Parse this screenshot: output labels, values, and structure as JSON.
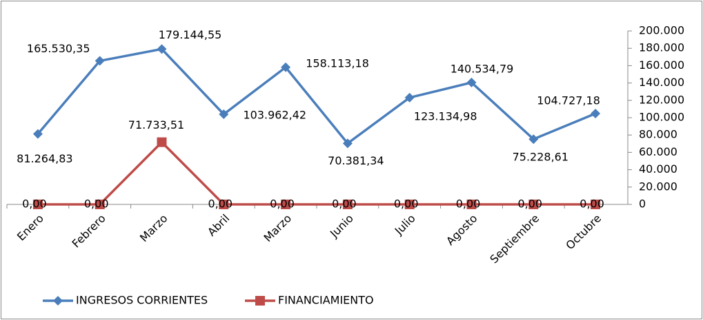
{
  "chart_data": {
    "type": "line",
    "categories": [
      "Enero",
      "Febrero",
      "Marzo",
      "Abril",
      "Marzo",
      "Junio",
      "Julio",
      "Agosto",
      "Septiembre",
      "Octubre"
    ],
    "series": [
      {
        "name": "INGRESOS CORRIENTES",
        "color": "#4a7ebb",
        "values": [
          81264.83,
          165530.35,
          179144.55,
          103962.42,
          158113.18,
          70381.34,
          123134.98,
          140534.79,
          75228.61,
          104727.18
        ],
        "value_labels": [
          "81.264,83",
          "165.530,35",
          "179.144,55",
          "103.962,42",
          "158.113,18",
          "70.381,34",
          "123.134,98",
          "140.534,79",
          "75.228,61",
          "104.727,18"
        ]
      },
      {
        "name": "FINANCIAMIENTO",
        "color": "#be4b48",
        "values": [
          0,
          0,
          71733.51,
          0,
          0,
          0,
          0,
          0,
          0,
          0
        ],
        "value_labels": [
          "0,00",
          "0,00",
          "71.733,51",
          "0,00",
          "0,00",
          "0,00",
          "0,00",
          "0,00",
          "0,00",
          "0,00"
        ]
      }
    ],
    "ylim": [
      0,
      200000
    ],
    "yticks": [
      0,
      {
        "value": 20000,
        "label": "20.000"
      },
      {
        "value": 40000,
        "label": "40.000"
      },
      {
        "value": 60000,
        "label": "60.000"
      },
      {
        "value": 80000,
        "label": "80.000"
      },
      {
        "value": 100000,
        "label": "100.000"
      },
      {
        "value": 120000,
        "label": "120.000"
      },
      {
        "value": 140000,
        "label": "140.000"
      },
      {
        "value": 160000,
        "label": "160.000"
      },
      {
        "value": 180000,
        "label": "180.000"
      },
      {
        "value": 200000,
        "label": "200.000"
      }
    ],
    "legend": "bottom"
  }
}
